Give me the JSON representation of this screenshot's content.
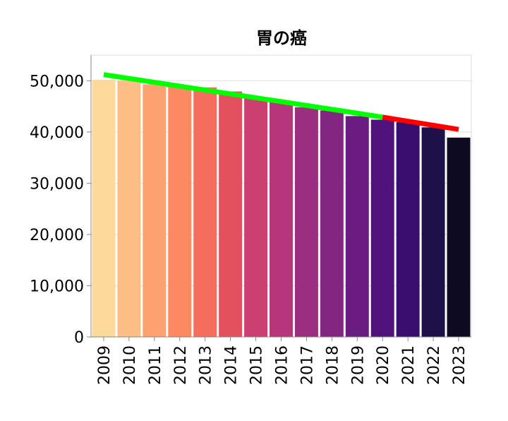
{
  "chart_data": {
    "type": "bar",
    "title": "胃の癌",
    "xlabel": "",
    "ylabel": "",
    "categories": [
      "2009",
      "2010",
      "2011",
      "2012",
      "2013",
      "2014",
      "2015",
      "2016",
      "2017",
      "2018",
      "2019",
      "2020",
      "2021",
      "2022",
      "2023"
    ],
    "values": [
      50200,
      50000,
      49300,
      49100,
      48700,
      47900,
      46700,
      45900,
      44800,
      44200,
      43100,
      42400,
      41900,
      40900,
      38900
    ],
    "ylim": [
      0,
      55000
    ],
    "yticks": [
      "0",
      "10,000",
      "20,000",
      "30,000",
      "40,000",
      "50,000"
    ],
    "bar_colors": [
      "#fdd99b",
      "#fdbe85",
      "#fca271",
      "#fc8961",
      "#f56d5c",
      "#e3505e",
      "#cc3f71",
      "#b5367a",
      "#9c2e7f",
      "#832681",
      "#6a1c81",
      "#50137c",
      "#380f6e",
      "#1e1149",
      "#0d0a22"
    ],
    "grid": true,
    "trend_lines": [
      {
        "color": "#00ff00",
        "from": {
          "x": "2009",
          "y": 51200
        },
        "to": {
          "x": "2020",
          "y": 42900
        }
      },
      {
        "color": "#ff0000",
        "from": {
          "x": "2020",
          "y": 42900
        },
        "to": {
          "x": "2023",
          "y": 40500
        }
      }
    ]
  }
}
